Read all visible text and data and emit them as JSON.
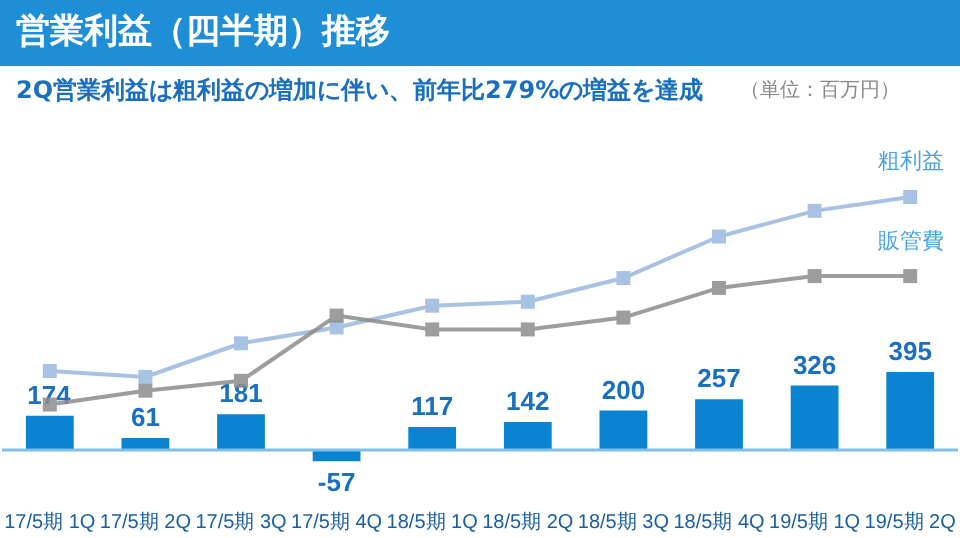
{
  "chart_data": {
    "type": "bar",
    "title": "営業利益（四半期）推移",
    "subtitle": "2Q営業利益は粗利益の増加に伴い、前年比279%の増益を達成",
    "annotations": [
      "（単位：百万円）"
    ],
    "categories": [
      "17/5期 1Q",
      "17/5期 2Q",
      "17/5期 3Q",
      "17/5期 4Q",
      "18/5期 1Q",
      "18/5期 2Q",
      "18/5期 3Q",
      "18/5期 4Q",
      "19/5期 1Q",
      "19/5期 2Q"
    ],
    "series": [
      {
        "color": "#0a84d0",
        "values": [
          174,
          61,
          181,
          -57,
          117,
          142,
          200,
          257,
          326,
          395
        ],
        "value_labels": [
          "174",
          "61",
          "181",
          "-57",
          "117",
          "142",
          "200",
          "257",
          "326",
          "395"
        ]
      },
      {
        "type": "line",
        "name": "粗利益",
        "color": "#9ab8e0",
        "values": [
          400,
          370,
          540,
          620,
          730,
          750,
          870,
          1080,
          1210,
          1280
        ]
      },
      {
        "type": "line",
        "name": "販管費",
        "color": "#8c8c8c",
        "values": [
          230,
          300,
          350,
          680,
          610,
          610,
          670,
          820,
          880,
          880
        ]
      }
    ],
    "marker": "square",
    "legend": false,
    "grid": false,
    "tick_labels": "x",
    "ref_lines": [
      {
        "axis": "y",
        "value": 0,
        "color": "#7fc0e8"
      }
    ]
  }
}
